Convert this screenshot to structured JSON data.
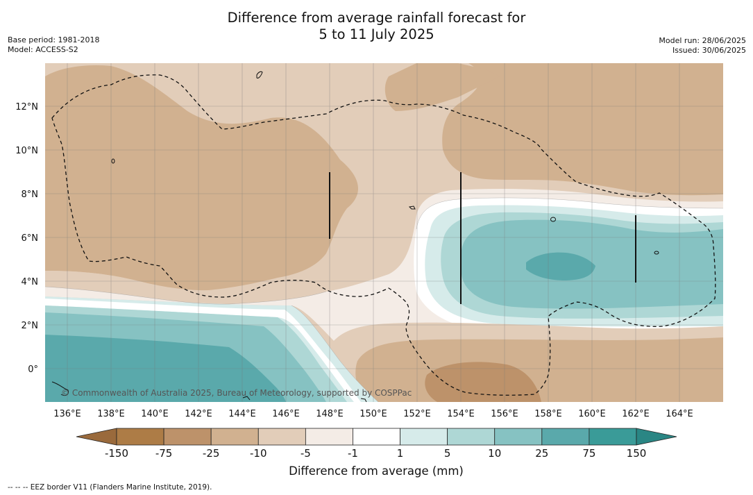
{
  "title_line1": "Difference from average rainfall forecast for",
  "title_line2": "5 to 11 July 2025",
  "base_period": "Base period: 1981-2018",
  "model": "Model: ACCESS-S2",
  "model_run": "Model run: 28/06/2025",
  "issued": "Issued: 30/06/2025",
  "copyright": "© Commonwealth of Australia 2025, Bureau of Meteorology, supported by COSPPac",
  "footnote": "--  --  -- EEZ border V11 (Flanders Marine Institute, 2019).",
  "map": {
    "lon_labels": [
      "136°E",
      "138°E",
      "140°E",
      "142°E",
      "144°E",
      "146°E",
      "148°E",
      "150°E",
      "152°E",
      "154°E",
      "156°E",
      "158°E",
      "160°E",
      "162°E",
      "164°E"
    ],
    "lat_labels": [
      "12°N",
      "10°N",
      "8°N",
      "6°N",
      "4°N",
      "2°N",
      "0°"
    ],
    "lon_range": [
      134,
      166
    ],
    "lat_range": [
      -1.5,
      14
    ]
  },
  "colorbar": {
    "title": "Difference from average (mm)",
    "tick_labels": [
      "-150",
      "-75",
      "-25",
      "-10",
      "-5",
      "-1",
      "1",
      "5",
      "10",
      "25",
      "75",
      "150"
    ],
    "colors": [
      "#9a6a3c",
      "#ad7c46",
      "#bd926a",
      "#d1b190",
      "#e2cdb9",
      "#f4ece6",
      "#ffffff",
      "#d6ebea",
      "#aed7d5",
      "#86c2c2",
      "#5aa9ab",
      "#3a9b98",
      "#2a8684"
    ]
  }
}
